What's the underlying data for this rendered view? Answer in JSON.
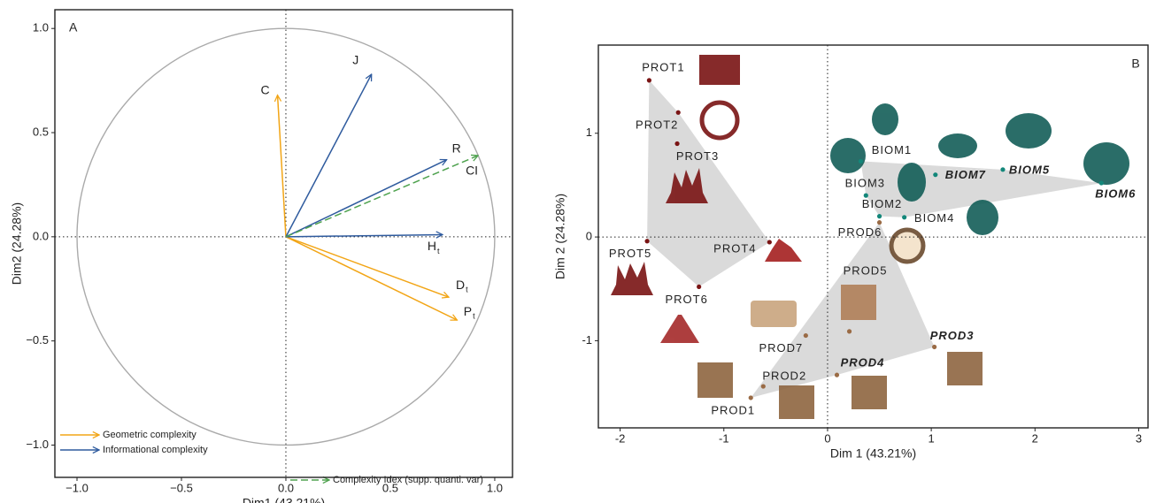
{
  "chart_data": [
    {
      "type": "arrows",
      "label": "A",
      "xlabel": "Dim1 (43.21%)",
      "ylabel": "Dim2 (24.28%)",
      "xlim": [
        -1.106,
        1.085
      ],
      "ylim": [
        -1.155,
        1.09
      ],
      "xticks": [
        {
          "value": -1,
          "label": "−1.0"
        },
        {
          "value": -0.5,
          "label": "−0.5"
        },
        {
          "value": 0,
          "label": "0.0"
        },
        {
          "value": 0.5,
          "label": "0.5"
        },
        {
          "value": 1,
          "label": "1.0"
        }
      ],
      "yticks": [
        {
          "value": -1,
          "label": "−1.0"
        },
        {
          "value": -0.5,
          "label": "−0.5"
        },
        {
          "value": 0,
          "label": "0.0"
        },
        {
          "value": 0.5,
          "label": "0.5"
        },
        {
          "value": 1,
          "label": "1.0"
        }
      ],
      "circle": true,
      "series": [
        {
          "name": "Geometric complexity",
          "color": "#f2a516",
          "dashed": false,
          "arrows": [
            {
              "label": "C",
              "x": -0.04,
              "y": 0.68
            },
            {
              "label": "D",
              "subscript": "t",
              "x": 0.78,
              "y": -0.29
            },
            {
              "label": "P",
              "subscript": "t",
              "x": 0.82,
              "y": -0.4
            }
          ]
        },
        {
          "name": "Informational complexity",
          "color": "#2f5b9e",
          "dashed": false,
          "arrows": [
            {
              "label": "J",
              "x": 0.41,
              "y": 0.78
            },
            {
              "label": "R",
              "x": 0.77,
              "y": 0.37
            },
            {
              "label": "H",
              "subscript": "t",
              "x": 0.75,
              "y": 0.01
            }
          ]
        },
        {
          "name": "Complexity Idex (supp. quanti. var)",
          "color": "#4ea24e",
          "dashed": true,
          "arrows": [
            {
              "label": "CI",
              "x": 0.92,
              "y": 0.39
            }
          ]
        }
      ]
    },
    {
      "type": "scatter",
      "label": "B",
      "xlabel": "Dim 1 (43.21%)",
      "ylabel": "Dim 2 (24.28%)",
      "xlim": [
        -2.21,
        3.09
      ],
      "ylim": [
        -1.84,
        1.85
      ],
      "xticks": [
        -2,
        -1,
        0,
        1,
        2,
        3
      ],
      "yticks": [
        -1,
        0,
        1
      ],
      "hull": true,
      "series": [
        {
          "color": "#7a1414",
          "labels": [
            "PROT1",
            "PROT2",
            "PROT3",
            "PROT4",
            "PROT5",
            "PROT6"
          ],
          "x": [
            -1.72,
            -1.44,
            -1.45,
            -0.56,
            -1.74,
            -1.24
          ],
          "values": [
            1.51,
            1.2,
            0.9,
            -0.05,
            -0.04,
            -0.48
          ],
          "highlight": [
            false,
            false,
            false,
            false,
            false,
            false
          ]
        },
        {
          "color": "#9a6b45",
          "labels": [
            "PROD1",
            "PROD2",
            "PROD3",
            "PROD4",
            "PROD5",
            "PROD6",
            "PROD7"
          ],
          "x": [
            -0.74,
            -0.62,
            1.03,
            0.09,
            0.21,
            0.5,
            -0.21
          ],
          "values": [
            -1.55,
            -1.44,
            -1.06,
            -1.33,
            -0.91,
            0.14,
            -0.95
          ],
          "highlight": [
            false,
            false,
            true,
            true,
            false,
            false,
            false
          ]
        },
        {
          "color": "#13877a",
          "labels": [
            "BIOM1",
            "BIOM2",
            "BIOM3",
            "BIOM4",
            "BIOM5",
            "BIOM6",
            "BIOM7"
          ],
          "x": [
            0.32,
            0.5,
            0.37,
            0.74,
            1.69,
            2.64,
            1.04
          ],
          "values": [
            0.73,
            0.2,
            0.4,
            0.19,
            0.65,
            0.52,
            0.6
          ],
          "highlight": [
            false,
            false,
            false,
            false,
            true,
            true,
            true
          ]
        }
      ]
    }
  ]
}
